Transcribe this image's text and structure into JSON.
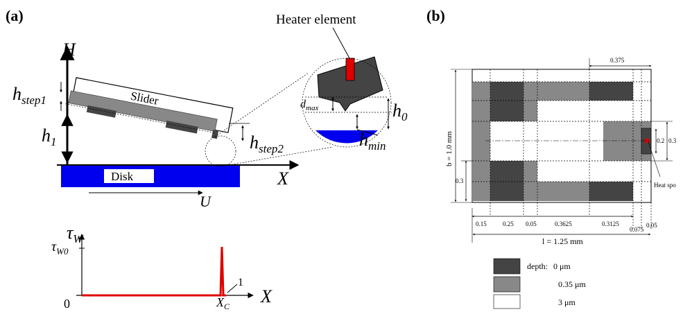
{
  "panel_a": {
    "label": "(a)",
    "schematic": {
      "h_axis": "H",
      "x_axis": "X",
      "slider": "Slider",
      "disk": "Disk",
      "velocity": "U",
      "h_step1": {
        "base": "h",
        "sub": "step1"
      },
      "h_1": {
        "base": "h",
        "sub": "1"
      },
      "h_step2": {
        "base": "h",
        "sub": "step2"
      }
    },
    "zoom": {
      "heater": "Heater element",
      "d_max": {
        "base": "d",
        "sub": "max"
      },
      "h_0": {
        "base": "h",
        "sub": "0"
      },
      "h_min": {
        "base": "h",
        "sub": "min"
      }
    },
    "shear_plot": {
      "y_axis": {
        "base": "τ",
        "sub": "W"
      },
      "y_tick": {
        "base": "τ",
        "sub": "W0"
      },
      "origin": "0",
      "x_end": "1",
      "x_c": {
        "base": "X",
        "sub": "C"
      },
      "x_axis": "X"
    }
  },
  "panel_b": {
    "label": "(b)",
    "dims": {
      "top": "0.375",
      "width_b": "b = 1.0 mm",
      "left": "0.3",
      "pad_inner": "0.2",
      "pad_outer": "0.3",
      "heat_spot": "Heat spo",
      "length": "l = 1.25 mm",
      "bottom": [
        "0.15",
        "0.25",
        "0.05",
        "0.3625",
        "0.3125",
        "0.075",
        "0.05"
      ]
    },
    "legend": {
      "title": "depth:",
      "items": [
        "0 μm",
        "0.35 μm",
        "3 μm"
      ]
    }
  }
}
